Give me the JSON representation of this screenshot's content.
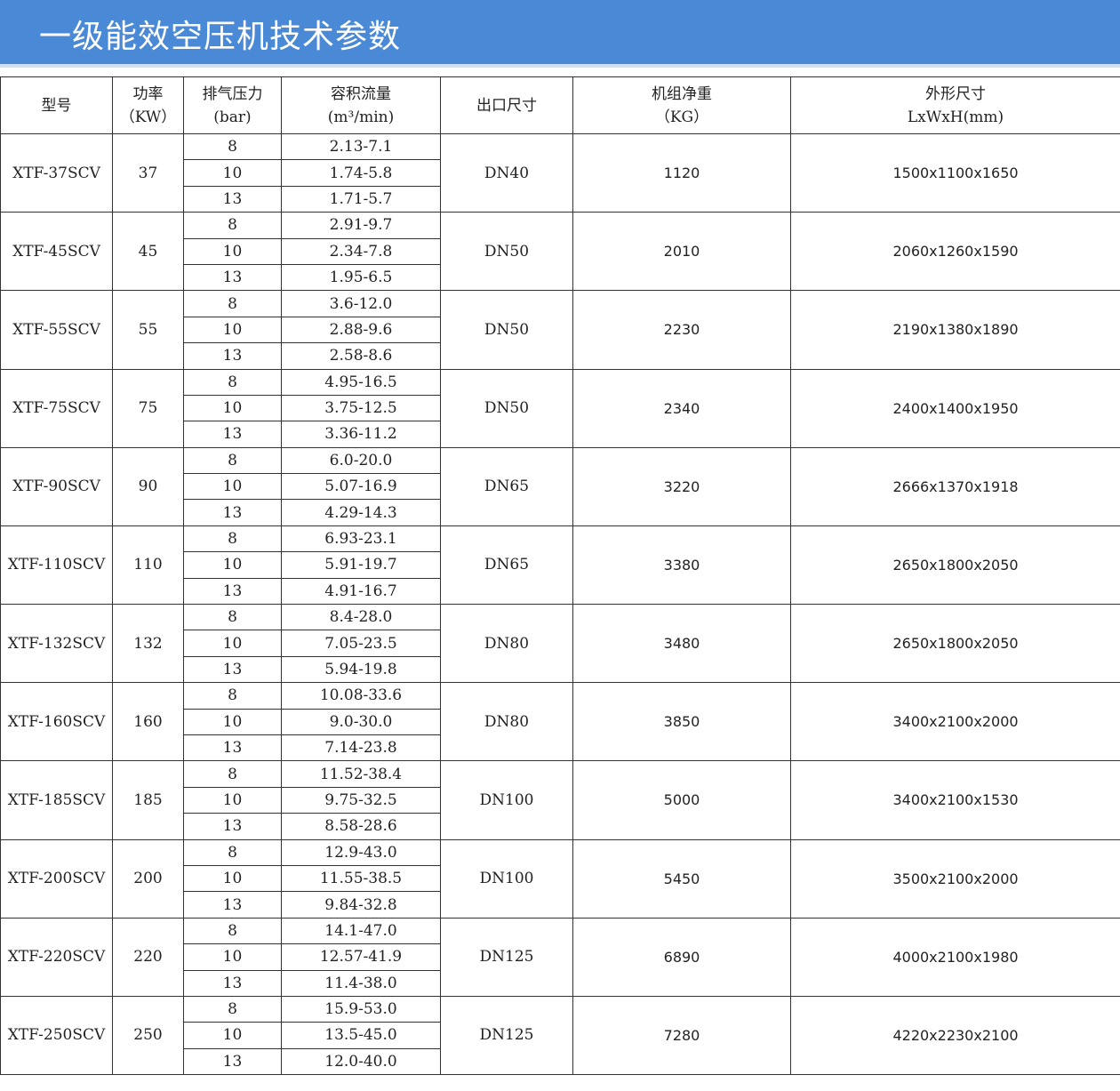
{
  "title": "一级能效空压机技术参数",
  "colors": {
    "banner": "#4a89d6"
  },
  "headers": [
    [
      "型号"
    ],
    [
      "功率",
      "（KW）"
    ],
    [
      "排气压力",
      "(bar)"
    ],
    [
      "容积流量",
      "(m³/min)"
    ],
    [
      "出口尺寸"
    ],
    [
      "机组净重",
      "（KG）"
    ],
    [
      "外形尺寸",
      "LxWxH(mm)"
    ]
  ],
  "rows": [
    {
      "model": "XTF-37SCV",
      "power": "37",
      "outlet": "DN40",
      "weight": "1120",
      "dims": "1500x1100x1650",
      "pressures": [
        "8",
        "10",
        "13"
      ],
      "flows": [
        "2.13-7.1",
        "1.74-5.8",
        "1.71-5.7"
      ]
    },
    {
      "model": "XTF-45SCV",
      "power": "45",
      "outlet": "DN50",
      "weight": "2010",
      "dims": "2060x1260x1590",
      "pressures": [
        "8",
        "10",
        "13"
      ],
      "flows": [
        "2.91-9.7",
        "2.34-7.8",
        "1.95-6.5"
      ]
    },
    {
      "model": "XTF-55SCV",
      "power": "55",
      "outlet": "DN50",
      "weight": "2230",
      "dims": "2190x1380x1890",
      "pressures": [
        "8",
        "10",
        "13"
      ],
      "flows": [
        "3.6-12.0",
        "2.88-9.6",
        "2.58-8.6"
      ]
    },
    {
      "model": "XTF-75SCV",
      "power": "75",
      "outlet": "DN50",
      "weight": "2340",
      "dims": "2400x1400x1950",
      "pressures": [
        "8",
        "10",
        "13"
      ],
      "flows": [
        "4.95-16.5",
        "3.75-12.5",
        "3.36-11.2"
      ]
    },
    {
      "model": "XTF-90SCV",
      "power": "90",
      "outlet": "DN65",
      "weight": "3220",
      "dims": "2666x1370x1918",
      "pressures": [
        "8",
        "10",
        "13"
      ],
      "flows": [
        "6.0-20.0",
        "5.07-16.9",
        "4.29-14.3"
      ]
    },
    {
      "model": "XTF-110SCV",
      "power": "110",
      "outlet": "DN65",
      "weight": "3380",
      "dims": "2650x1800x2050",
      "pressures": [
        "8",
        "10",
        "13"
      ],
      "flows": [
        "6.93-23.1",
        "5.91-19.7",
        "4.91-16.7"
      ]
    },
    {
      "model": "XTF-132SCV",
      "power": "132",
      "outlet": "DN80",
      "weight": "3480",
      "dims": "2650x1800x2050",
      "pressures": [
        "8",
        "10",
        "13"
      ],
      "flows": [
        "8.4-28.0",
        "7.05-23.5",
        "5.94-19.8"
      ]
    },
    {
      "model": "XTF-160SCV",
      "power": "160",
      "outlet": "DN80",
      "weight": "3850",
      "dims": "3400x2100x2000",
      "pressures": [
        "8",
        "10",
        "13"
      ],
      "flows": [
        "10.08-33.6",
        "9.0-30.0",
        "7.14-23.8"
      ]
    },
    {
      "model": "XTF-185SCV",
      "power": "185",
      "outlet": "DN100",
      "weight": "5000",
      "dims": "3400x2100x1530",
      "pressures": [
        "8",
        "10",
        "13"
      ],
      "flows": [
        "11.52-38.4",
        "9.75-32.5",
        "8.58-28.6"
      ]
    },
    {
      "model": "XTF-200SCV",
      "power": "200",
      "outlet": "DN100",
      "weight": "5450",
      "dims": "3500x2100x2000",
      "pressures": [
        "8",
        "10",
        "13"
      ],
      "flows": [
        "12.9-43.0",
        "11.55-38.5",
        "9.84-32.8"
      ]
    },
    {
      "model": "XTF-220SCV",
      "power": "220",
      "outlet": "DN125",
      "weight": "6890",
      "dims": "4000x2100x1980",
      "pressures": [
        "8",
        "10",
        "13"
      ],
      "flows": [
        "14.1-47.0",
        "12.57-41.9",
        "11.4-38.0"
      ]
    },
    {
      "model": "XTF-250SCV",
      "power": "250",
      "outlet": "DN125",
      "weight": "7280",
      "dims": "4220x2230x2100",
      "pressures": [
        "8",
        "10",
        "13"
      ],
      "flows": [
        "15.9-53.0",
        "13.5-45.0",
        "12.0-40.0"
      ]
    }
  ]
}
